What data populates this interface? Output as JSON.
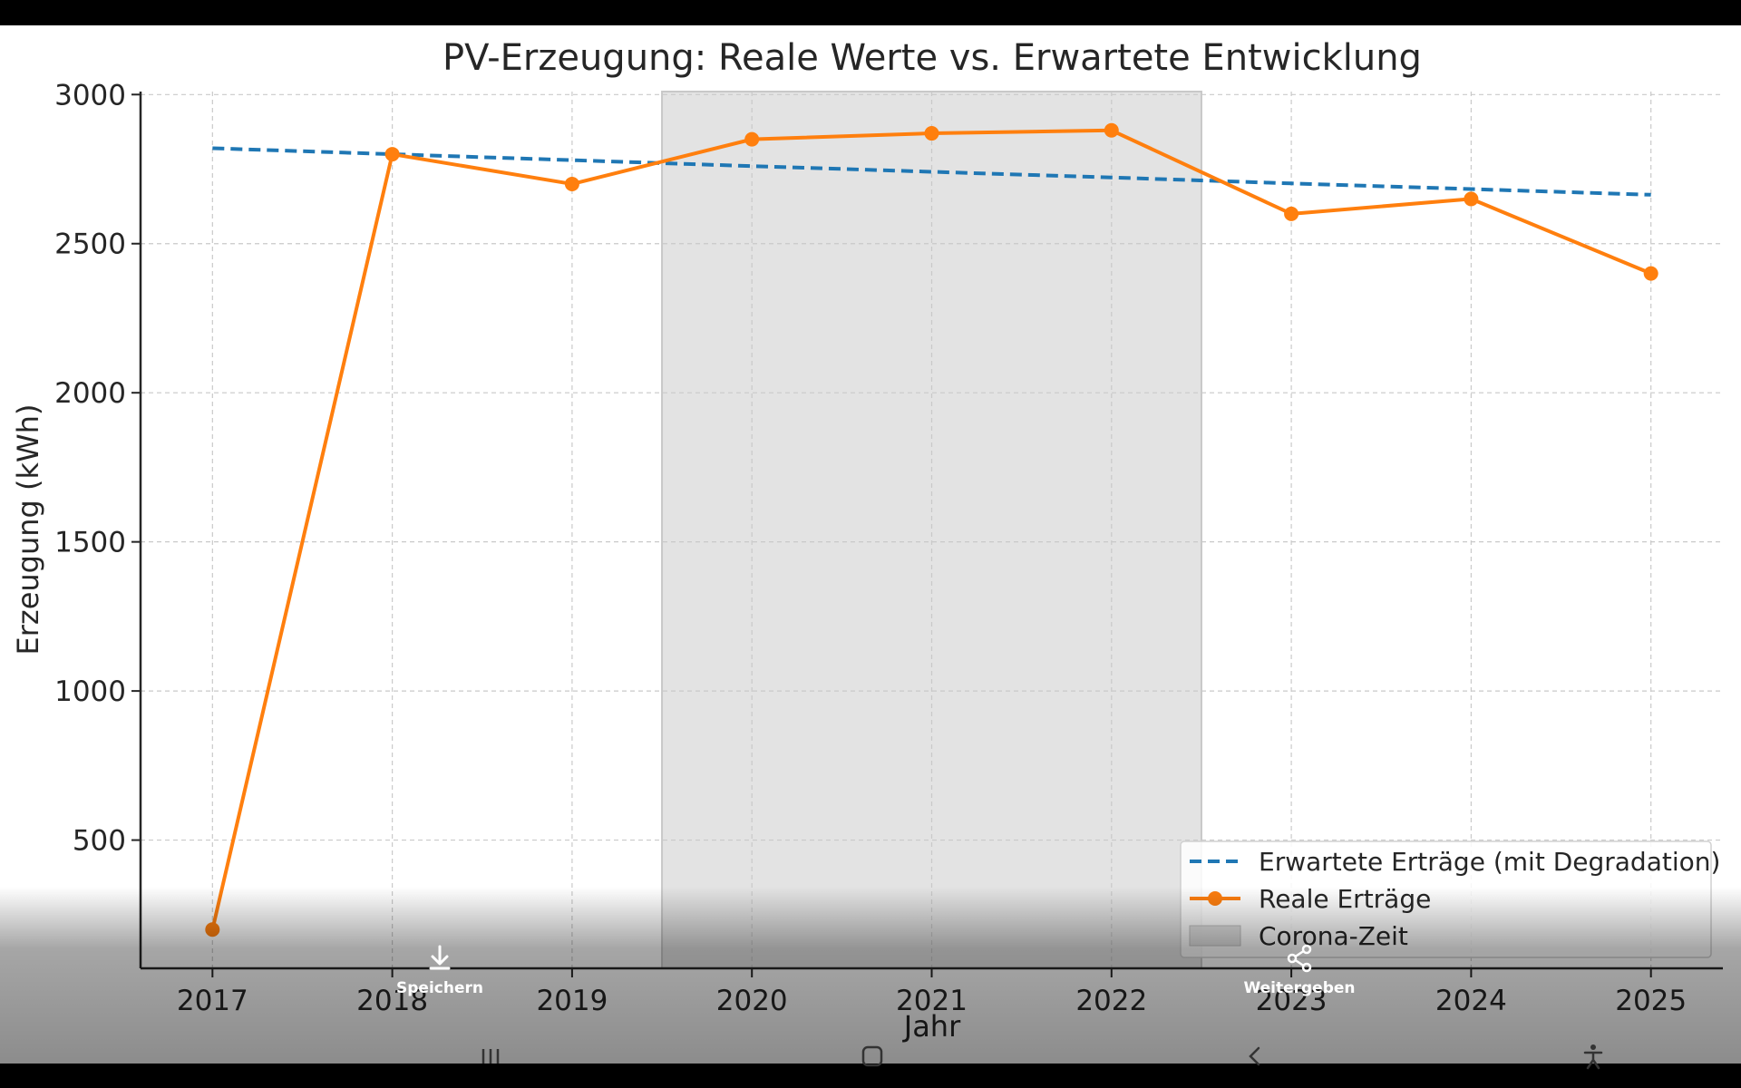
{
  "chart_data": {
    "type": "line",
    "title": "PV-Erzeugung: Reale Werte vs. Erwartete Entwicklung",
    "xlabel": "Jahr",
    "ylabel": "Erzeugung (kWh)",
    "x": [
      2017,
      2018,
      2019,
      2020,
      2021,
      2022,
      2023,
      2024,
      2025
    ],
    "xlim": [
      2016.6,
      2025.4
    ],
    "ylim": [
      70,
      3010
    ],
    "yticks": [
      500,
      1000,
      1500,
      2000,
      2500,
      3000
    ],
    "grid": true,
    "legend_position": "lower-right",
    "series": [
      {
        "name": "Erwartete Erträge (mit Degradation)",
        "style": "dashed",
        "color": "#1f77b4",
        "values": [
          2820,
          2800,
          2780,
          2760,
          2741,
          2722,
          2702,
          2683,
          2664
        ]
      },
      {
        "name": "Reale Erträge",
        "style": "solid-markers",
        "color": "#ff7f0e",
        "values": [
          200,
          2800,
          2700,
          2850,
          2870,
          2880,
          2600,
          2650,
          2400
        ]
      }
    ],
    "shaded_regions": [
      {
        "name": "Corona-Zeit",
        "x_range": [
          2019.5,
          2022.5
        ],
        "color": "#d9d9d9"
      }
    ]
  },
  "actions": {
    "save_label": "Speichern",
    "share_label": "Weitergeben"
  },
  "icons": {
    "save": "download-icon",
    "share": "share-icon",
    "recent": "recent-apps-icon",
    "home": "home-icon",
    "back": "back-icon",
    "accessibility": "accessibility-icon"
  }
}
